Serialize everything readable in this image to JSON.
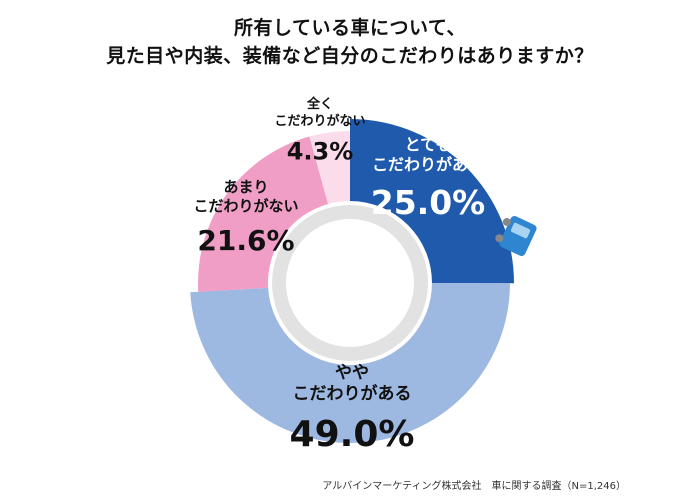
{
  "chart_data": {
    "type": "pie",
    "style": "donut",
    "title_lines": [
      "所有している車について、",
      "見た目や内装、装備など自分のこだわりはありますか？"
    ],
    "slices": [
      {
        "label_lines": [
          "とても",
          "こだわりがある"
        ],
        "value": 25.0,
        "value_label": "25.0%",
        "color": "#1f5aad",
        "text_color": "#ffffff"
      },
      {
        "label_lines": [
          "やや",
          "こだわりがある"
        ],
        "value": 49.0,
        "value_label": "49.0%",
        "color": "#9db9e2",
        "text_color": "#111111"
      },
      {
        "label_lines": [
          "あまり",
          "こだわりがない"
        ],
        "value": 21.6,
        "value_label": "21.6%",
        "color": "#f09ec5",
        "text_color": "#111111"
      },
      {
        "label_lines": [
          "全く",
          "こだわりがない"
        ],
        "value": 4.3,
        "value_label": "4.3%",
        "color": "#fbdcea",
        "text_color": "#111111"
      }
    ]
  },
  "footer": {
    "source": "アルバインマーケティング株式会社　車に関する調査（N=1,246）"
  },
  "icons": [
    "car-icon"
  ]
}
